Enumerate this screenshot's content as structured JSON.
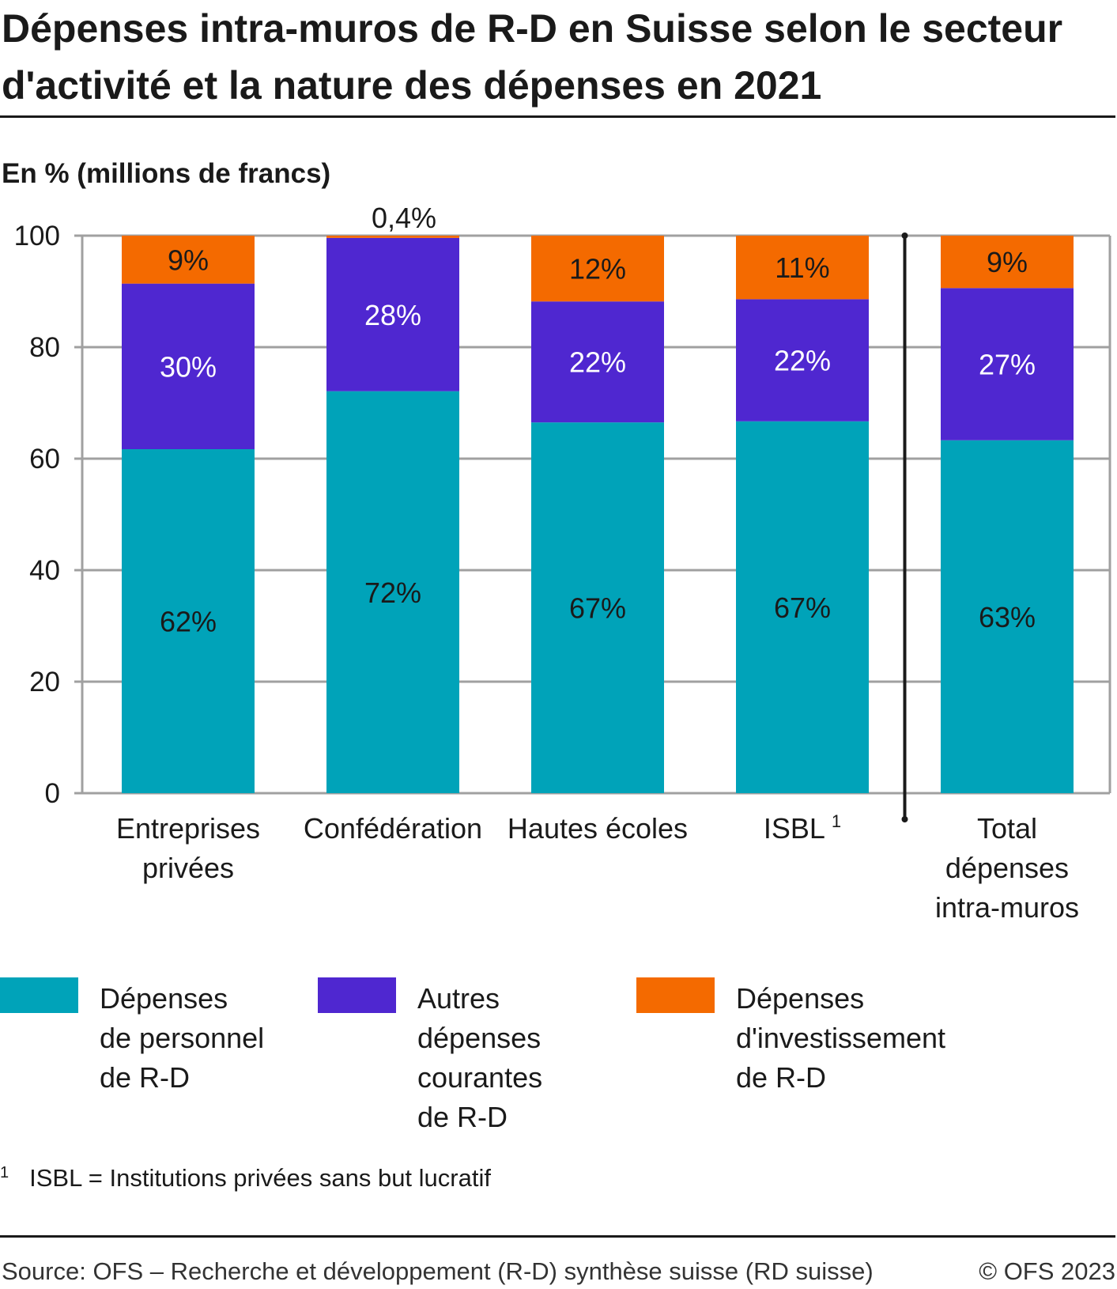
{
  "chart_data": {
    "type": "bar",
    "stacked": true,
    "title": "Dépenses intra-muros de R-D en Suisse selon le secteur d'activité et la nature des dépenses en 2021",
    "ylabel": "En  % (millions de francs)",
    "xlabel": "",
    "ylim": [
      0,
      100
    ],
    "yticks": [
      "0",
      "20",
      "40",
      "60",
      "80",
      "100"
    ],
    "grid": true,
    "categories": [
      "Entreprises\nprivées",
      "Confédération",
      "Hautes écoles",
      "ISBL",
      "Total\ndépenses\nintra-muros"
    ],
    "category_footnotes": [
      "",
      "",
      "",
      "1",
      ""
    ],
    "series": [
      {
        "name": "Dépenses\nde personnel\nde R-D",
        "color": "#00a3b9",
        "values": [
          61.7,
          72.1,
          66.5,
          66.7,
          63.3
        ],
        "labels": [
          "62%",
          "72%",
          "67%",
          "67%",
          "63%"
        ],
        "label_color": "#1a1a1a"
      },
      {
        "name": "Autres\ndépenses\ncourantes\nde R-D",
        "color": "#4f27d0",
        "values": [
          29.7,
          27.5,
          21.7,
          21.9,
          27.3
        ],
        "labels": [
          "30%",
          "28%",
          "22%",
          "22%",
          "27%"
        ],
        "label_color": "#ffffff"
      },
      {
        "name": "Dépenses\nd'investissement\nde R-D",
        "color": "#f46a00",
        "values": [
          8.6,
          0.4,
          11.8,
          11.4,
          9.4
        ],
        "labels": [
          "9%",
          "0,4%",
          "12%",
          "11%",
          "9%"
        ],
        "label_color": "#1a1a1a"
      }
    ],
    "legend_position": "bottom"
  },
  "footnote": {
    "mark": "1",
    "text": "ISBL = Institutions privées sans but lucratif"
  },
  "source": "Source: OFS – Recherche et développement (R-D) synthèse suisse (RD suisse)",
  "copyright": "© OFS 2023"
}
